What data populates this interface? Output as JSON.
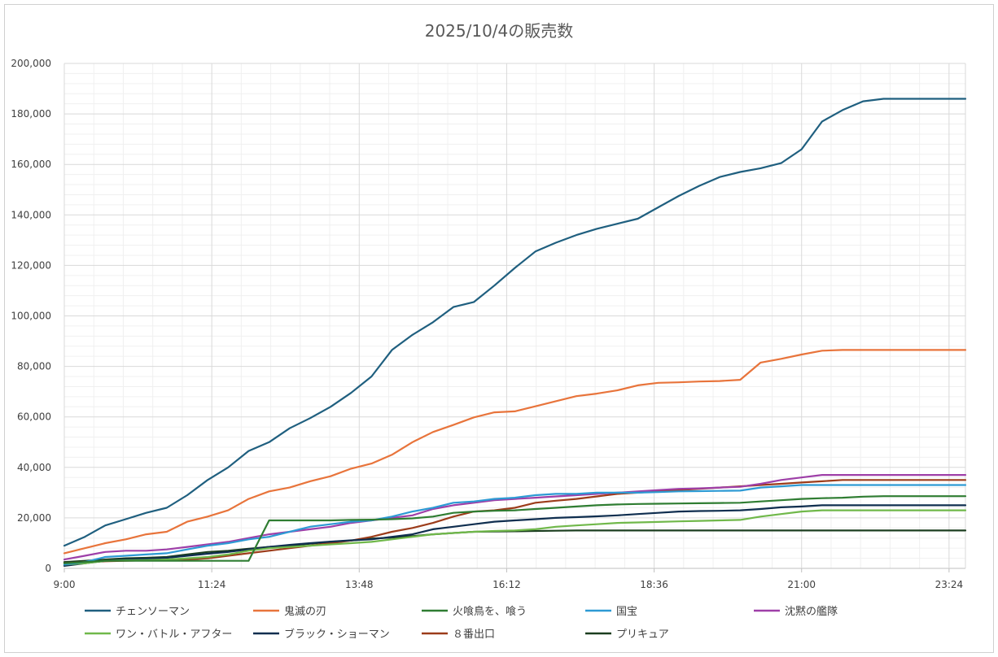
{
  "chart_data": {
    "type": "line",
    "title": "2025/10/4の販売数",
    "xlabel": "",
    "ylabel": "",
    "ylim": [
      0,
      200000
    ],
    "yticks": [
      "0",
      "20,000",
      "40,000",
      "60,000",
      "80,000",
      "100,000",
      "120,000",
      "140,000",
      "160,000",
      "180,000",
      "200,000"
    ],
    "xlim": [
      "9:00",
      "23:40"
    ],
    "xticks": [
      "9:00",
      "11:24",
      "13:48",
      "16:12",
      "18:36",
      "21:00",
      "23:24"
    ],
    "grid": true,
    "legend_position": "bottom",
    "x": [
      "9:00",
      "9:20",
      "9:40",
      "10:00",
      "10:20",
      "10:40",
      "11:00",
      "11:20",
      "11:40",
      "12:00",
      "12:20",
      "12:40",
      "13:00",
      "13:20",
      "13:40",
      "14:00",
      "14:20",
      "14:40",
      "15:00",
      "15:20",
      "15:40",
      "16:00",
      "16:20",
      "16:40",
      "17:00",
      "17:20",
      "17:40",
      "18:00",
      "18:20",
      "18:40",
      "19:00",
      "19:20",
      "19:40",
      "20:00",
      "20:20",
      "20:40",
      "21:00",
      "21:20",
      "21:40",
      "22:00",
      "22:20",
      "22:40",
      "23:00",
      "23:20",
      "23:40"
    ],
    "series": [
      {
        "name": "チェンソーマン",
        "color": "#1f5f7f",
        "values": [
          9000,
          12500,
          17000,
          19500,
          22000,
          24000,
          29000,
          35000,
          40000,
          46500,
          50000,
          55500,
          59500,
          64000,
          69500,
          76000,
          86500,
          92500,
          97500,
          103500,
          105500,
          112000,
          119000,
          125500,
          129000,
          132000,
          134500,
          136500,
          138500,
          143000,
          147500,
          151500,
          155000,
          157000,
          158500,
          160500,
          166000,
          177000,
          181500,
          185000,
          186000,
          186000,
          186000,
          186000,
          186000
        ]
      },
      {
        "name": "鬼滅の刃",
        "color": "#e8743b",
        "values": [
          6000,
          8000,
          10000,
          11500,
          13500,
          14500,
          18500,
          20500,
          23000,
          27500,
          30500,
          32000,
          34500,
          36500,
          39500,
          41500,
          45000,
          50000,
          54000,
          56800,
          59800,
          61800,
          62200,
          64200,
          66200,
          68200,
          69200,
          70500,
          72500,
          73500,
          73700,
          74000,
          74200,
          74700,
          81500,
          83000,
          84700,
          86200,
          86500,
          86500,
          86500,
          86500,
          86500,
          86500,
          86500
        ]
      },
      {
        "name": "火喰鳥を、喰う",
        "color": "#2f7d32",
        "values": [
          2000,
          2500,
          3000,
          3000,
          3000,
          3000,
          3000,
          3000,
          3000,
          3000,
          19000,
          19000,
          19000,
          19000,
          19200,
          19300,
          19500,
          19800,
          20500,
          22000,
          22500,
          22800,
          23000,
          23500,
          24000,
          24500,
          25000,
          25300,
          25500,
          25600,
          25700,
          25800,
          25900,
          26000,
          26500,
          27000,
          27500,
          27800,
          28000,
          28400,
          28600,
          28600,
          28600,
          28600,
          28600
        ]
      },
      {
        "name": "国宝",
        "color": "#2d9ad4",
        "values": [
          1500,
          2500,
          4500,
          5000,
          5500,
          6000,
          7500,
          9000,
          10000,
          11500,
          12500,
          14500,
          16500,
          17500,
          18500,
          19000,
          20500,
          22500,
          24000,
          26000,
          26500,
          27500,
          28000,
          29000,
          29500,
          29500,
          30000,
          30000,
          30000,
          30200,
          30500,
          30600,
          30700,
          30800,
          32000,
          32500,
          33000,
          33000,
          33000,
          33000,
          33000,
          33000,
          33000,
          33000,
          33000
        ]
      },
      {
        "name": "沈黙の艦隊",
        "color": "#9e3fa8",
        "values": [
          3500,
          5000,
          6500,
          7000,
          7000,
          7500,
          8500,
          9500,
          10500,
          12000,
          13500,
          14500,
          15500,
          16500,
          18000,
          19000,
          20000,
          21000,
          23500,
          25000,
          26000,
          27000,
          27500,
          28000,
          28500,
          29000,
          29500,
          30000,
          30500,
          31000,
          31500,
          31700,
          32000,
          32300,
          33500,
          35000,
          36000,
          37000,
          37000,
          37000,
          37000,
          37000,
          37000,
          37000,
          37000
        ]
      },
      {
        "name": "ワン・バトル・アフター",
        "color": "#70b84a",
        "values": [
          1500,
          2000,
          3000,
          3200,
          3300,
          3500,
          4000,
          4500,
          5500,
          7000,
          8000,
          8500,
          9000,
          9500,
          10000,
          10500,
          11500,
          12500,
          13500,
          14000,
          14500,
          14800,
          15000,
          15500,
          16500,
          17000,
          17500,
          18000,
          18200,
          18400,
          18600,
          18800,
          19000,
          19200,
          20500,
          21500,
          22500,
          23000,
          23000,
          23000,
          23000,
          23000,
          23000,
          23000,
          23000
        ]
      },
      {
        "name": "ブラック・ショーマン",
        "color": "#0f2e4f",
        "values": [
          1000,
          2000,
          3000,
          3500,
          3800,
          4200,
          5000,
          5800,
          6500,
          7500,
          8500,
          9300,
          10000,
          10600,
          11100,
          11500,
          12500,
          13500,
          15500,
          16500,
          17500,
          18500,
          19000,
          19500,
          20000,
          20300,
          20600,
          21000,
          21500,
          22000,
          22500,
          22700,
          22800,
          23000,
          23500,
          24200,
          24500,
          25000,
          25000,
          25000,
          25000,
          25000,
          25000,
          25000,
          25000
        ]
      },
      {
        "name": "８番出口",
        "color": "#9c3c1a",
        "values": [
          2000,
          2500,
          2800,
          3000,
          3200,
          3300,
          3500,
          4000,
          5000,
          6000,
          7000,
          8000,
          9000,
          10000,
          11000,
          12500,
          14500,
          16000,
          18000,
          20500,
          22500,
          23000,
          24000,
          26000,
          26800,
          27500,
          28500,
          29500,
          30000,
          30500,
          31000,
          31500,
          32000,
          32500,
          33000,
          33500,
          34000,
          34500,
          35000,
          35000,
          35000,
          35000,
          35000,
          35000,
          35000
        ]
      },
      {
        "name": "プリキュア",
        "color": "#1b3e1f",
        "values": [
          2500,
          3000,
          3500,
          4000,
          4200,
          4500,
          5500,
          6500,
          7000,
          7800,
          8500,
          9000,
          9800,
          10500,
          11000,
          11800,
          12200,
          12800,
          13500,
          14000,
          14500,
          14600,
          14700,
          14800,
          14900,
          15000,
          15000,
          15000,
          15000,
          15000,
          15000,
          15000,
          15000,
          15000,
          15000,
          15000,
          15000,
          15000,
          15000,
          15000,
          15000,
          15000,
          15000,
          15000,
          15000
        ]
      }
    ]
  }
}
